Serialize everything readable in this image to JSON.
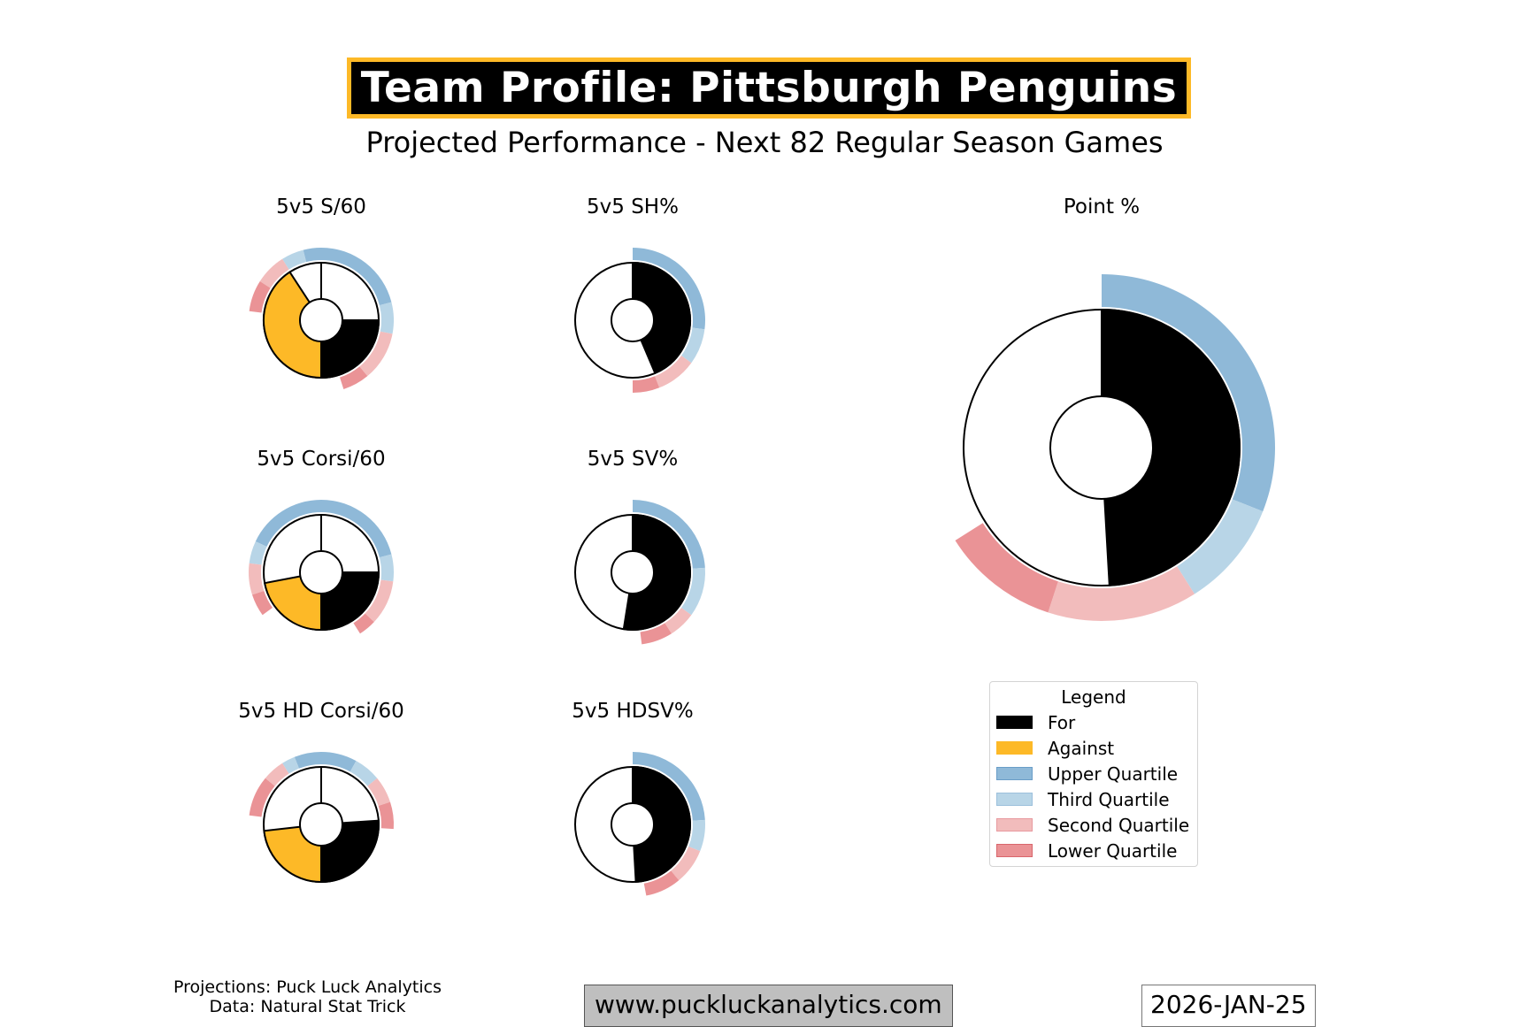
{
  "header": {
    "title": "Team Profile: Pittsburgh Penguins",
    "subtitle": "Projected Performance - Next 82 Regular Season Games"
  },
  "colors": {
    "for": "#000000",
    "against": "#fdb927",
    "upper": "#8fb9d8",
    "third": "#b8d5e7",
    "second": "#f2bcbc",
    "lower": "#ea9396",
    "title_border": "#fdb927"
  },
  "chart_data": [
    {
      "type": "pie",
      "title": "5v5 S/60",
      "values": {
        "for": 12.5,
        "against": 20.4
      },
      "rank_bands": {
        "for": [
          0.21,
          0.07,
          0.11,
          0.06
        ],
        "against": [
          0.04,
          0.05,
          0.07,
          0.07
        ]
      }
    },
    {
      "type": "pie",
      "title": "5v5 SH%",
      "values": {
        "for": 9.6
      },
      "rank_bands": {
        "for": [
          0.27,
          0.08,
          0.09,
          0.06
        ]
      }
    },
    {
      "type": "pie",
      "title": "5v5 Corsi/60",
      "values": {
        "for": 25.0,
        "against": 22.0
      },
      "rank_bands": {
        "for": [
          0.21,
          0.06,
          0.1,
          0.04
        ],
        "against": [
          0.18,
          0.05,
          0.07,
          0.05
        ]
      }
    },
    {
      "type": "pie",
      "title": "5v5 SV%",
      "values": {
        "for": 91.2
      },
      "rank_bands": {
        "for": [
          0.24,
          0.11,
          0.06,
          0.07
        ]
      }
    },
    {
      "type": "pie",
      "title": "5v5 HD Corsi/60",
      "values": {
        "for": 7.3,
        "against": 6.5
      },
      "rank_bands": {
        "for": [
          0.08,
          0.06,
          0.06,
          0.06
        ],
        "against": [
          0.06,
          0.03,
          0.05,
          0.09
        ]
      }
    },
    {
      "type": "pie",
      "title": "5v5 HDSV%",
      "values": {
        "for": 82.7
      },
      "rank_bands": {
        "for": [
          0.24,
          0.07,
          0.08,
          0.08
        ]
      }
    },
    {
      "type": "pie",
      "title": "Point %",
      "values": {
        "for": 0.491
      },
      "rank_bands": {
        "for": [
          0.31,
          0.1,
          0.14,
          0.11
        ]
      }
    }
  ],
  "legend": {
    "title": "Legend",
    "items": [
      {
        "label": "For",
        "color": "#000000",
        "border": "#000000"
      },
      {
        "label": "Against",
        "color": "#fdb927",
        "border": "#fdb927"
      },
      {
        "label": "Upper Quartile",
        "color": "#8fb9d8",
        "border": "#6a9ec8"
      },
      {
        "label": "Third Quartile",
        "color": "#b8d5e7",
        "border": "#9cc0dc"
      },
      {
        "label": "Second Quartile",
        "color": "#f2bcbc",
        "border": "#e89aa0"
      },
      {
        "label": "Lower Quartile",
        "color": "#ea9396",
        "border": "#d9666c"
      }
    ]
  },
  "footer": {
    "credits_line1": "Projections: Puck Luck Analytics",
    "credits_line2": "Data: Natural Stat Trick",
    "website": "www.puckluckanalytics.com",
    "date": "2026-JAN-25"
  }
}
